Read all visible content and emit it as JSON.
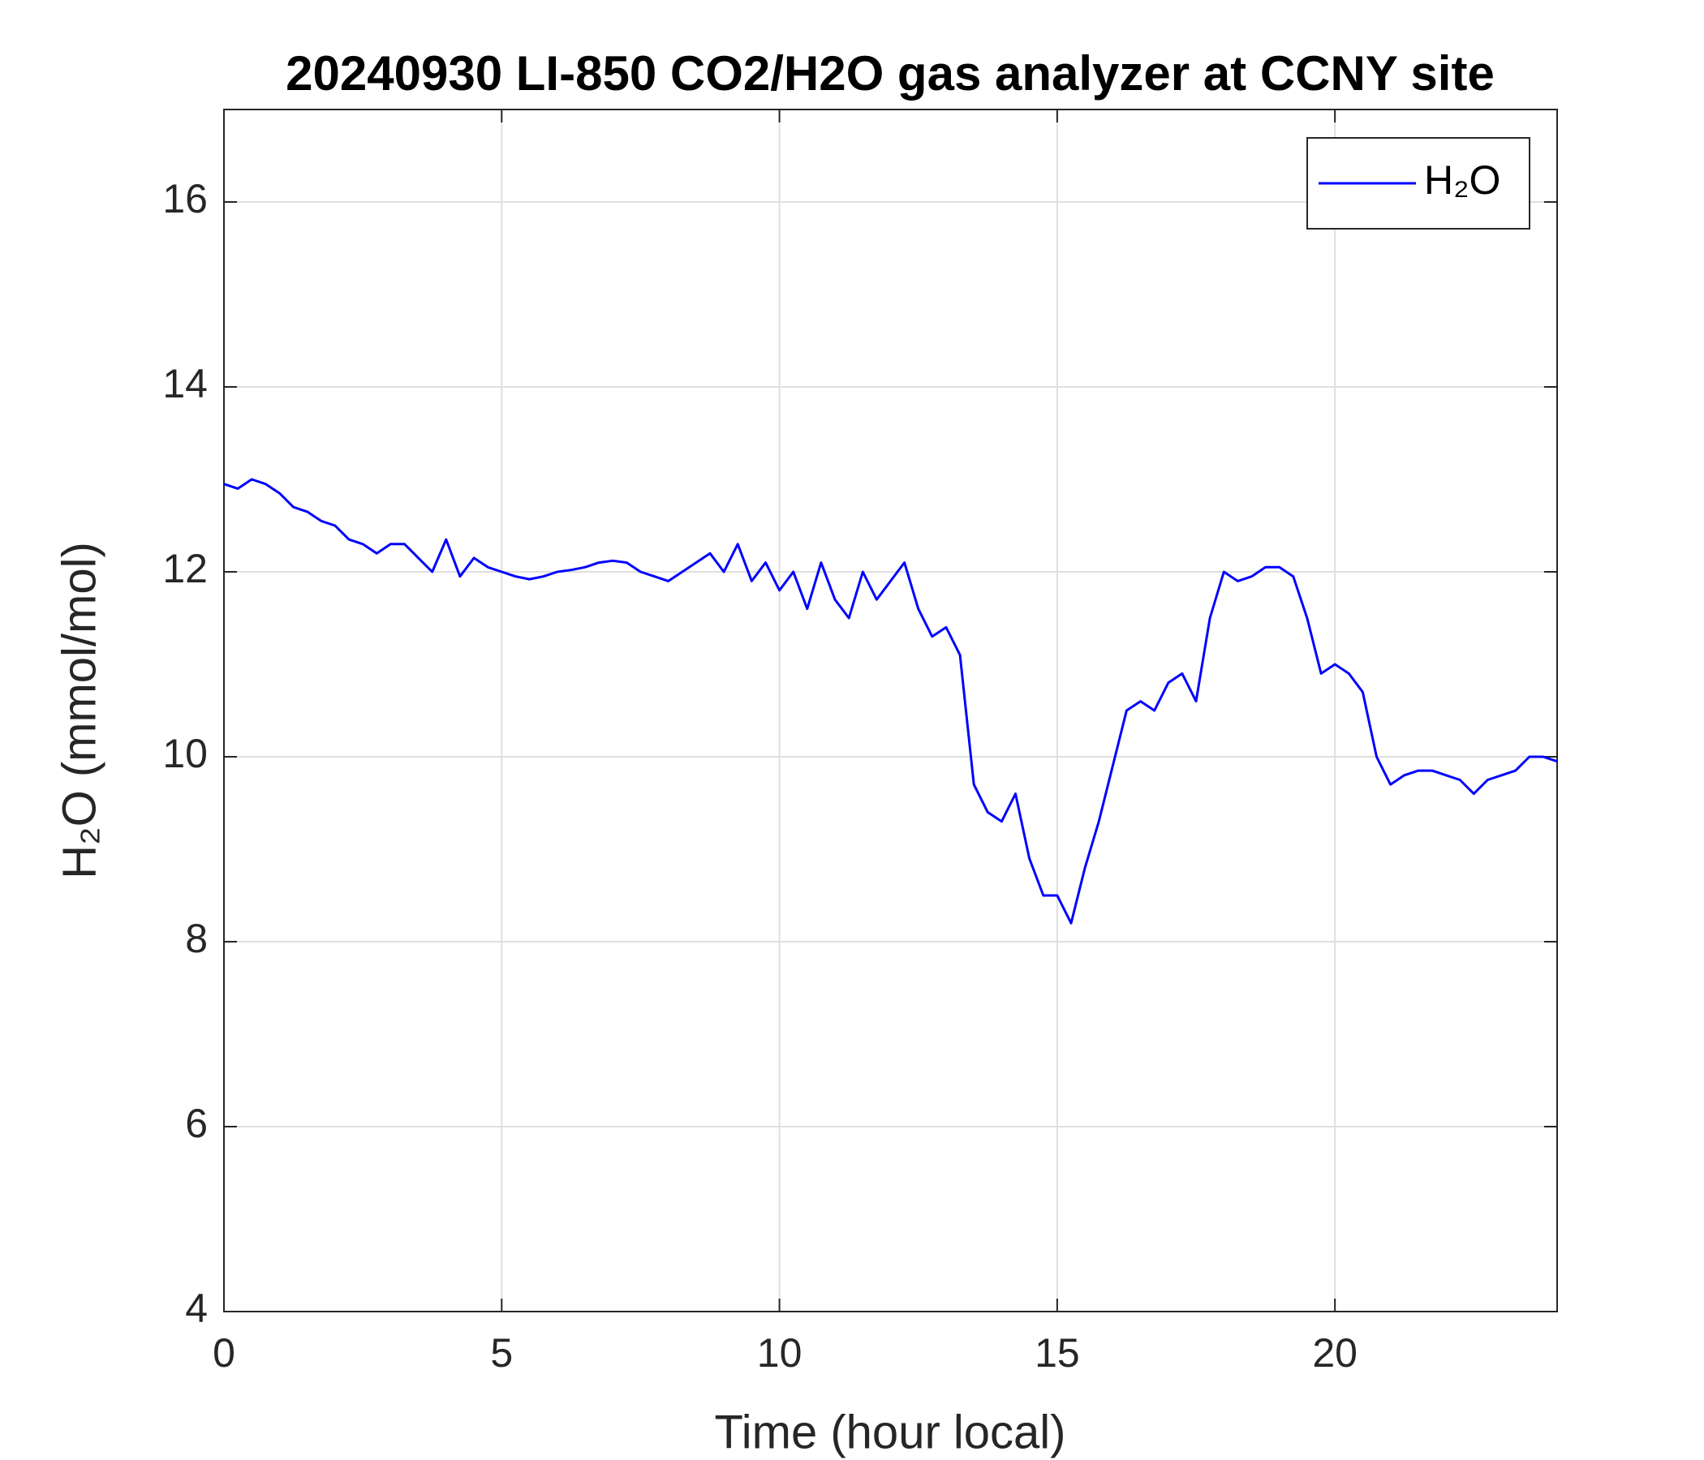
{
  "chart_data": {
    "type": "line",
    "title": "20240930 LI-850 CO2/H2O gas analyzer at CCNY site",
    "x_label": "Time (hour local)",
    "y_label": "H₂O (mmol/mol)",
    "x": [
      0,
      0.25,
      0.5,
      0.75,
      1,
      1.25,
      1.5,
      1.75,
      2,
      2.25,
      2.5,
      2.75,
      3,
      3.25,
      3.5,
      3.75,
      4,
      4.25,
      4.5,
      4.75,
      5,
      5.25,
      5.5,
      5.75,
      6,
      6.25,
      6.5,
      6.75,
      7,
      7.25,
      7.5,
      7.75,
      8,
      8.25,
      8.5,
      8.75,
      9,
      9.25,
      9.5,
      9.75,
      10,
      10.25,
      10.5,
      10.75,
      11,
      11.25,
      11.5,
      11.75,
      12,
      12.25,
      12.5,
      12.75,
      13,
      13.25,
      13.5,
      13.75,
      14,
      14.25,
      14.5,
      14.75,
      15,
      15.25,
      15.5,
      15.75,
      16,
      16.25,
      16.5,
      16.75,
      17,
      17.25,
      17.5,
      17.75,
      18,
      18.25,
      18.5,
      18.75,
      19,
      19.25,
      19.5,
      19.75,
      20,
      20.25,
      20.5,
      20.75,
      21,
      21.25,
      21.5,
      21.75,
      22,
      22.25,
      22.5,
      22.75,
      23,
      23.25,
      23.5,
      23.75,
      24
    ],
    "series": [
      {
        "name": "H₂O",
        "color": "#0000ff",
        "values": [
          12.95,
          12.9,
          13.0,
          12.95,
          12.85,
          12.7,
          12.65,
          12.55,
          12.5,
          12.35,
          12.3,
          12.2,
          12.3,
          12.3,
          12.15,
          12.0,
          12.35,
          11.95,
          12.15,
          12.05,
          12.0,
          11.95,
          11.92,
          11.95,
          12.0,
          12.02,
          12.05,
          12.1,
          12.12,
          12.1,
          12.0,
          11.95,
          11.9,
          12.0,
          12.1,
          12.2,
          12.0,
          12.3,
          11.9,
          12.1,
          11.8,
          12.0,
          11.6,
          12.1,
          11.7,
          11.5,
          12.0,
          11.7,
          11.9,
          12.1,
          11.6,
          11.3,
          11.4,
          11.1,
          9.7,
          9.4,
          9.3,
          9.6,
          8.9,
          8.5,
          8.5,
          8.2,
          8.8,
          9.3,
          9.9,
          10.5,
          10.6,
          10.5,
          10.8,
          10.9,
          10.6,
          11.5,
          12.0,
          11.9,
          11.95,
          12.05,
          12.05,
          11.95,
          11.5,
          10.9,
          11.0,
          10.9,
          10.7,
          10.0,
          9.7,
          9.8,
          9.85,
          9.85,
          9.8,
          9.75,
          9.6,
          9.75,
          9.8,
          9.85,
          10.0,
          10.0,
          9.95
        ]
      }
    ],
    "xlim": [
      0,
      24
    ],
    "xticks": [
      0,
      5,
      10,
      15,
      20
    ],
    "ylim": [
      4,
      17
    ],
    "yticks": [
      4,
      6,
      8,
      10,
      12,
      14,
      16
    ],
    "grid": true,
    "legend": "upper right"
  }
}
